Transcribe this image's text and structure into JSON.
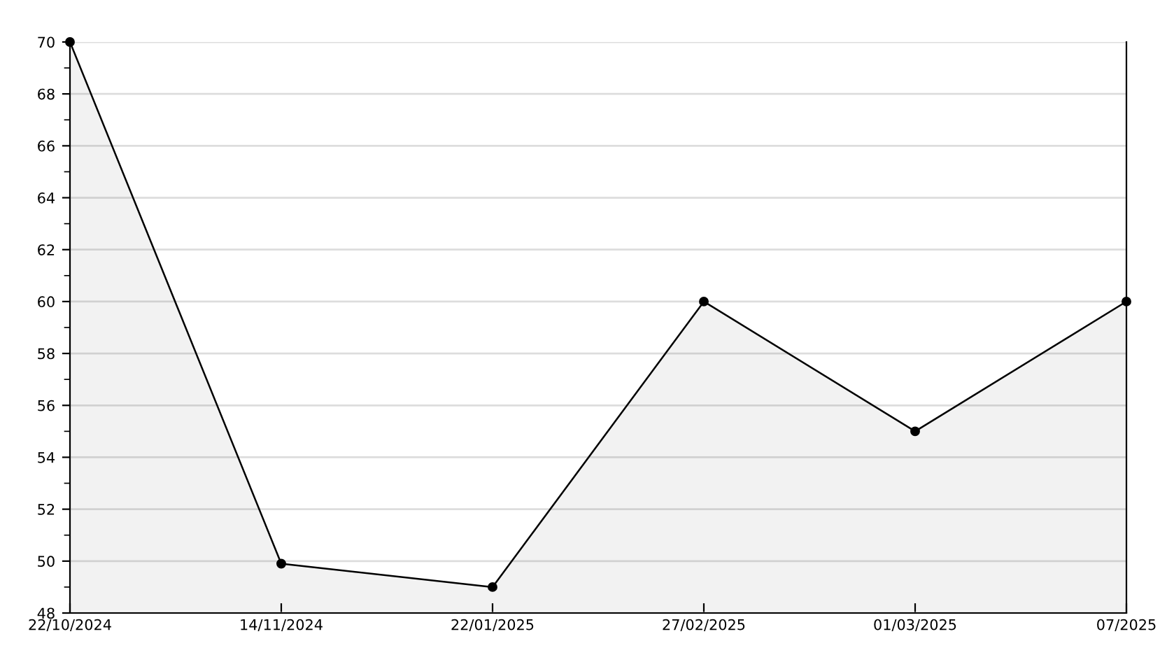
{
  "chart_data": {
    "type": "area",
    "categories": [
      "22/10/2024",
      "14/11/2024",
      "22/01/2025",
      "27/02/2025",
      "01/03/2025",
      "07/2025"
    ],
    "series": [
      {
        "color": "#000000",
        "values": [
          70,
          49.9,
          49,
          60,
          55,
          60
        ]
      }
    ],
    "ylim": [
      48,
      70
    ],
    "yticks": [
      48,
      50,
      52,
      54,
      56,
      58,
      60,
      62,
      64,
      66,
      68,
      70
    ],
    "grid": "y",
    "marker": "circle",
    "line_style": "solid",
    "legend": false
  }
}
